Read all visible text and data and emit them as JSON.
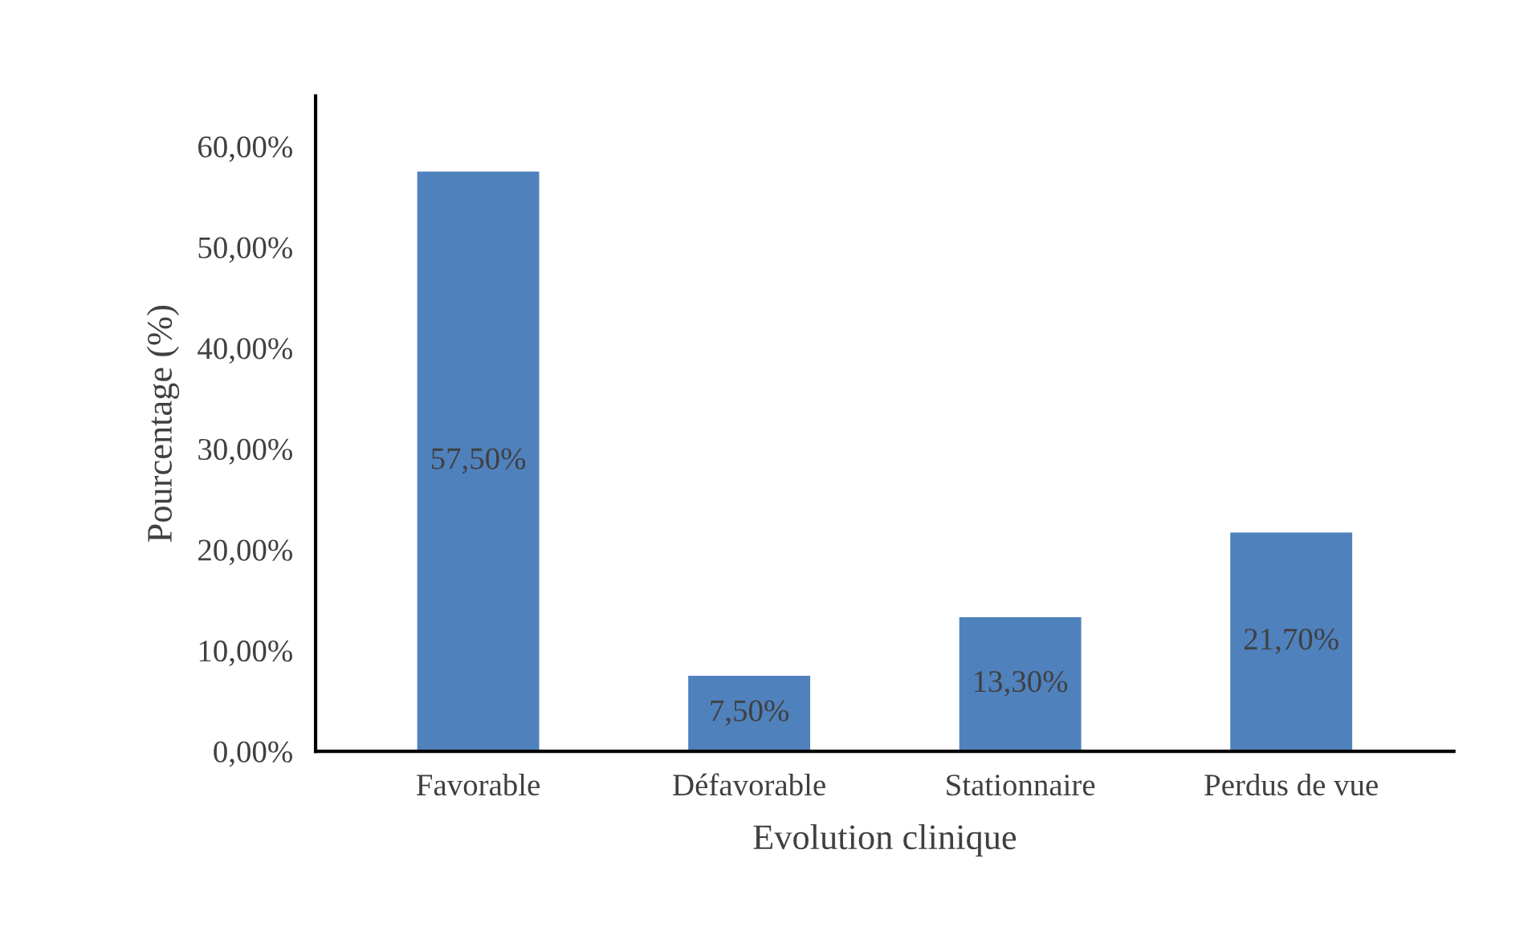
{
  "chart_data": {
    "type": "bar",
    "xlabel": "Evolution clinique",
    "ylabel": "Pourcentage (%)",
    "categories": [
      "Favorable",
      "Défavorable",
      "Stationnaire",
      "Perdus de vue"
    ],
    "values": [
      57.5,
      7.5,
      13.3,
      21.7
    ],
    "value_labels": [
      "57,50%",
      "7,50%",
      "13,30%",
      "21,70%"
    ],
    "color": "#4f81bd",
    "ylim": [
      0,
      65
    ],
    "yticks": [
      {
        "value": 0,
        "label": "0,00%"
      },
      {
        "value": 10,
        "label": "10,00%"
      },
      {
        "value": 20,
        "label": "20,00%"
      },
      {
        "value": 30,
        "label": "30,00%"
      },
      {
        "value": 40,
        "label": "40,00%"
      },
      {
        "value": 50,
        "label": "50,00%"
      },
      {
        "value": 60,
        "label": "60,00%"
      }
    ],
    "grid": false,
    "legend": false
  }
}
